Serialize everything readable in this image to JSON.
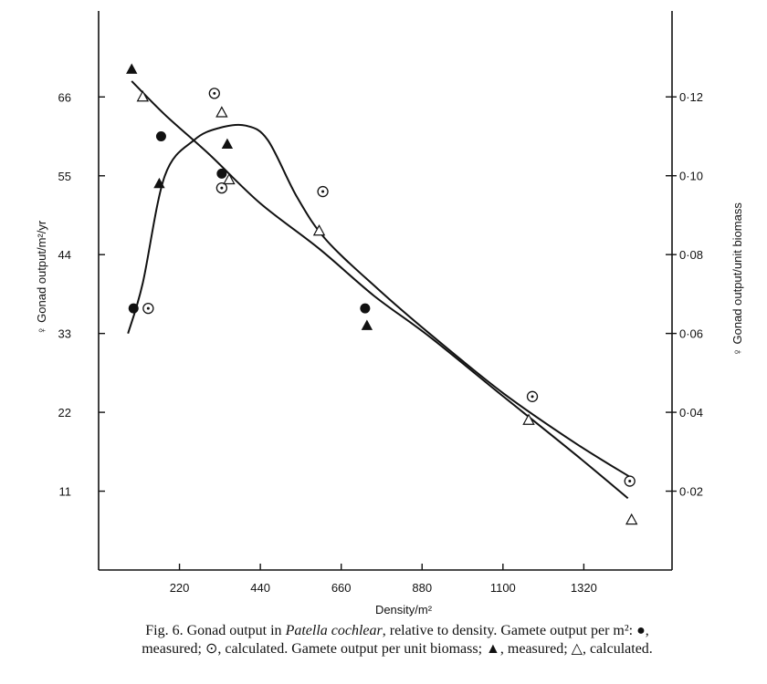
{
  "chart_data": {
    "type": "scatter",
    "xlabel": "Density/m²",
    "ylabel_left": "♀ Gonad output/m²/yr",
    "ylabel_right": "♀ Gonad output/unit biomass",
    "xlim": [
      0,
      1560
    ],
    "ylim_left": [
      0,
      78
    ],
    "ylim_right": [
      0,
      0.1418
    ],
    "x_ticks": [
      220,
      440,
      660,
      880,
      1100,
      1320
    ],
    "x_tick_labels": [
      "220",
      "440",
      "660",
      "880",
      "1100",
      "1320"
    ],
    "y_left_ticks": [
      11,
      22,
      33,
      44,
      55,
      66
    ],
    "y_left_tick_labels": [
      "11",
      "22",
      "33",
      "44",
      "55",
      "66"
    ],
    "y_right_ticks": [
      0.02,
      0.04,
      0.06,
      0.08,
      0.1,
      0.12
    ],
    "y_right_tick_labels": [
      "0·02",
      "0·04",
      "0·06",
      "0·08",
      "0·10",
      "0·12"
    ],
    "grid": false,
    "legend": "none",
    "series": [
      {
        "marker": "filled-circle",
        "axis": "left",
        "points": [
          {
            "x": 95,
            "y": 36.5
          },
          {
            "x": 170,
            "y": 60.5
          },
          {
            "x": 335,
            "y": 55.3
          },
          {
            "x": 725,
            "y": 36.5
          }
        ]
      },
      {
        "marker": "dotted-circle",
        "axis": "left",
        "points": [
          {
            "x": 135,
            "y": 36.5
          },
          {
            "x": 315,
            "y": 66.5
          },
          {
            "x": 335,
            "y": 53.3
          },
          {
            "x": 610,
            "y": 52.8
          },
          {
            "x": 1180,
            "y": 24.2
          },
          {
            "x": 1445,
            "y": 12.4
          }
        ]
      },
      {
        "marker": "filled-triangle",
        "axis": "right",
        "points": [
          {
            "x": 90,
            "y": 0.127
          },
          {
            "x": 165,
            "y": 0.098
          },
          {
            "x": 350,
            "y": 0.108
          },
          {
            "x": 730,
            "y": 0.062
          }
        ]
      },
      {
        "marker": "open-triangle",
        "axis": "right",
        "points": [
          {
            "x": 120,
            "y": 0.12
          },
          {
            "x": 335,
            "y": 0.116
          },
          {
            "x": 355,
            "y": 0.099
          },
          {
            "x": 600,
            "y": 0.086
          },
          {
            "x": 1170,
            "y": 0.038
          },
          {
            "x": 1450,
            "y": 0.0127
          }
        ]
      }
    ],
    "curves": [
      {
        "axis": "left",
        "points": [
          {
            "x": 80,
            "y": 33
          },
          {
            "x": 120,
            "y": 40
          },
          {
            "x": 180,
            "y": 55
          },
          {
            "x": 260,
            "y": 60
          },
          {
            "x": 330,
            "y": 61.7
          },
          {
            "x": 400,
            "y": 62
          },
          {
            "x": 460,
            "y": 60
          },
          {
            "x": 540,
            "y": 52
          },
          {
            "x": 620,
            "y": 46
          },
          {
            "x": 760,
            "y": 39.2
          },
          {
            "x": 900,
            "y": 33
          },
          {
            "x": 1100,
            "y": 24.7
          },
          {
            "x": 1300,
            "y": 17.6
          },
          {
            "x": 1445,
            "y": 13
          }
        ]
      },
      {
        "axis": "right",
        "points": [
          {
            "x": 90,
            "y": 0.124
          },
          {
            "x": 180,
            "y": 0.1155
          },
          {
            "x": 300,
            "y": 0.1055
          },
          {
            "x": 440,
            "y": 0.093
          },
          {
            "x": 600,
            "y": 0.0815
          },
          {
            "x": 750,
            "y": 0.0695
          },
          {
            "x": 900,
            "y": 0.0592
          },
          {
            "x": 1100,
            "y": 0.0441
          },
          {
            "x": 1300,
            "y": 0.0291
          },
          {
            "x": 1440,
            "y": 0.0182
          }
        ]
      }
    ]
  },
  "caption": {
    "line1_prefix": "Fig. 6. Gonad output in ",
    "line1_species": "Patella cochlear",
    "line1_suffix": ", relative to density. Gamete output per m²: ●,",
    "line2": "measured; ⊙, calculated. Gamete output per unit biomass; ▲, measured; △, calculated."
  }
}
